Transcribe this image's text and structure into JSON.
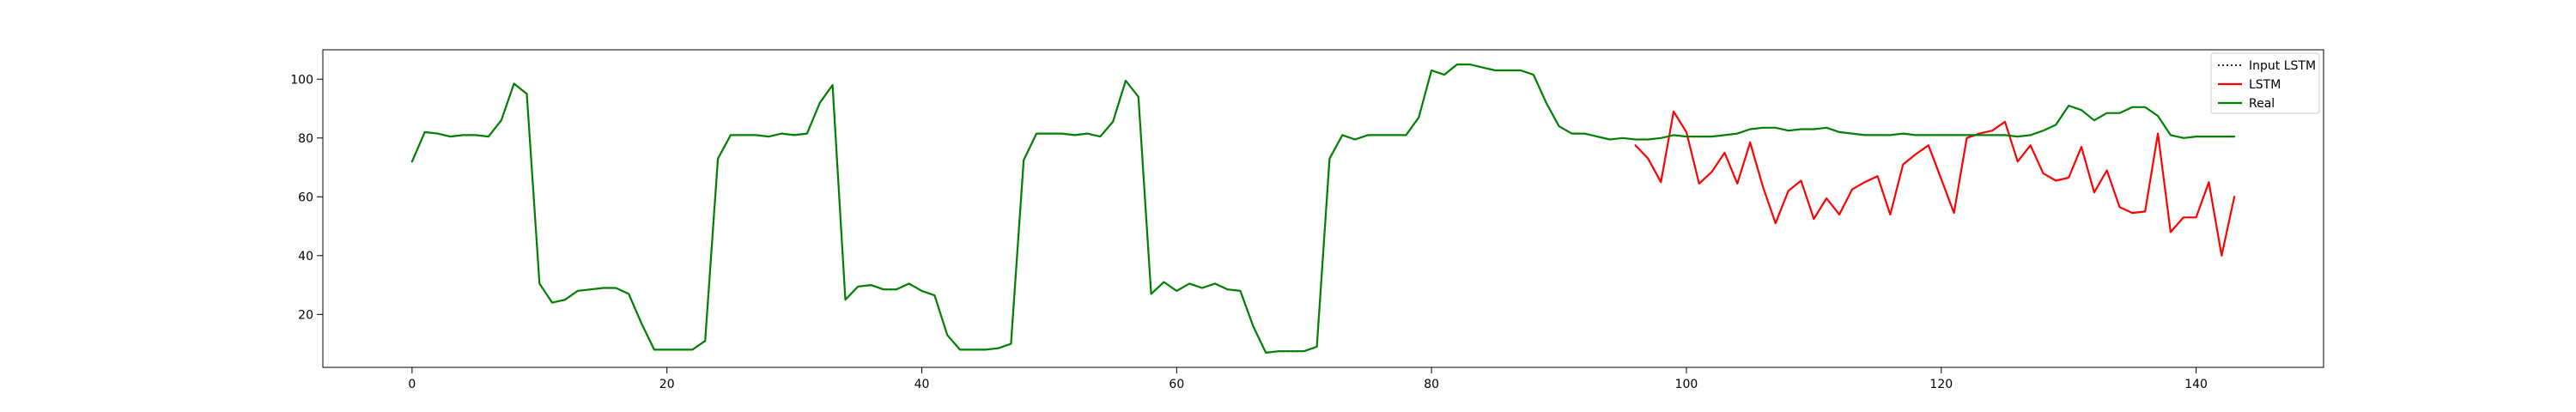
{
  "chart_data": {
    "type": "line",
    "title": "",
    "xlabel": "",
    "ylabel": "",
    "xlim": [
      -7,
      150
    ],
    "ylim": [
      2,
      110
    ],
    "xticks": [
      0,
      20,
      40,
      60,
      80,
      100,
      120,
      140
    ],
    "yticks": [
      20,
      40,
      60,
      80,
      100
    ],
    "grid": false,
    "legend": {
      "location": "upper right",
      "entries": [
        {
          "label": "Input LSTM",
          "color": "#000080",
          "style": "dotted"
        },
        {
          "label": "LSTM",
          "color": "#ff0000",
          "style": "solid"
        },
        {
          "label": "Real",
          "color": "#008000",
          "style": "solid"
        }
      ]
    },
    "series": [
      {
        "name": "Input LSTM",
        "color": "#000080",
        "style": "dotted",
        "x_start": 0,
        "values": [
          72,
          82,
          81.5,
          80.5,
          81,
          81,
          80.5,
          86,
          98.5,
          95,
          30.5,
          24,
          25,
          28,
          28.5,
          29,
          29,
          27,
          17,
          8,
          8,
          8,
          8,
          11,
          73,
          81,
          81,
          81,
          80.5,
          81.5,
          81,
          81.5,
          92,
          98,
          25,
          29.5,
          30,
          28.5,
          28.5,
          30.5,
          28,
          26.5,
          13,
          8,
          8,
          8,
          8.5,
          10,
          72.5,
          81.5,
          81.5,
          81.5,
          81,
          81.5,
          80.5,
          85.5,
          99.5,
          94,
          27,
          31,
          28,
          30.5,
          29,
          30.5,
          28.5,
          28,
          16,
          7,
          7.5,
          7.5,
          7.5,
          9,
          73,
          81,
          79.5,
          81,
          81,
          81,
          81,
          87,
          103,
          101.5,
          105,
          105,
          104,
          103,
          103,
          103,
          101.5,
          92,
          84,
          81.5,
          81.5,
          80.5,
          79.5
        ]
      },
      {
        "name": "LSTM",
        "color": "#ff0000",
        "style": "solid",
        "x_start": 96,
        "values": [
          77.5,
          73,
          65,
          89,
          82,
          64.5,
          68.5,
          75,
          64.5,
          78.5,
          63.5,
          51,
          62,
          65.5,
          52.5,
          59.5,
          54,
          62.5,
          65,
          67,
          54,
          71,
          74.5,
          77.5,
          66,
          54.5,
          80,
          81.5,
          82.5,
          85.5,
          72,
          77.5,
          68,
          65.5,
          66.5,
          77,
          61.5,
          69,
          56.5,
          54.5,
          55,
          81.5,
          48,
          53,
          53,
          65,
          40,
          60
        ]
      },
      {
        "name": "Real",
        "color": "#008000",
        "style": "solid",
        "x_start": 0,
        "values": [
          72,
          82,
          81.5,
          80.5,
          81,
          81,
          80.5,
          86,
          98.5,
          95,
          30.5,
          24,
          25,
          28,
          28.5,
          29,
          29,
          27,
          17,
          8,
          8,
          8,
          8,
          11,
          73,
          81,
          81,
          81,
          80.5,
          81.5,
          81,
          81.5,
          92,
          98,
          25,
          29.5,
          30,
          28.5,
          28.5,
          30.5,
          28,
          26.5,
          13,
          8,
          8,
          8,
          8.5,
          10,
          72.5,
          81.5,
          81.5,
          81.5,
          81,
          81.5,
          80.5,
          85.5,
          99.5,
          94,
          27,
          31,
          28,
          30.5,
          29,
          30.5,
          28.5,
          28,
          16,
          7,
          7.5,
          7.5,
          7.5,
          9,
          73,
          81,
          79.5,
          81,
          81,
          81,
          81,
          87,
          103,
          101.5,
          105,
          105,
          104,
          103,
          103,
          103,
          101.5,
          92,
          84,
          81.5,
          81.5,
          80.5,
          79.5,
          80,
          79.5,
          79.5,
          80,
          81,
          80.5,
          80.5,
          80.5,
          81,
          81.5,
          83,
          83.5,
          83.5,
          82.5,
          83,
          83,
          83.5,
          82,
          81.5,
          81,
          81,
          81,
          81.5,
          81,
          81,
          81,
          81,
          81,
          81,
          81,
          81,
          80.5,
          81,
          82.5,
          84.5,
          91,
          89.5,
          86,
          88.5,
          88.5,
          90.5,
          90.5,
          87.5,
          81,
          80,
          80.5,
          80.5,
          80.5,
          80.5
        ]
      }
    ]
  }
}
